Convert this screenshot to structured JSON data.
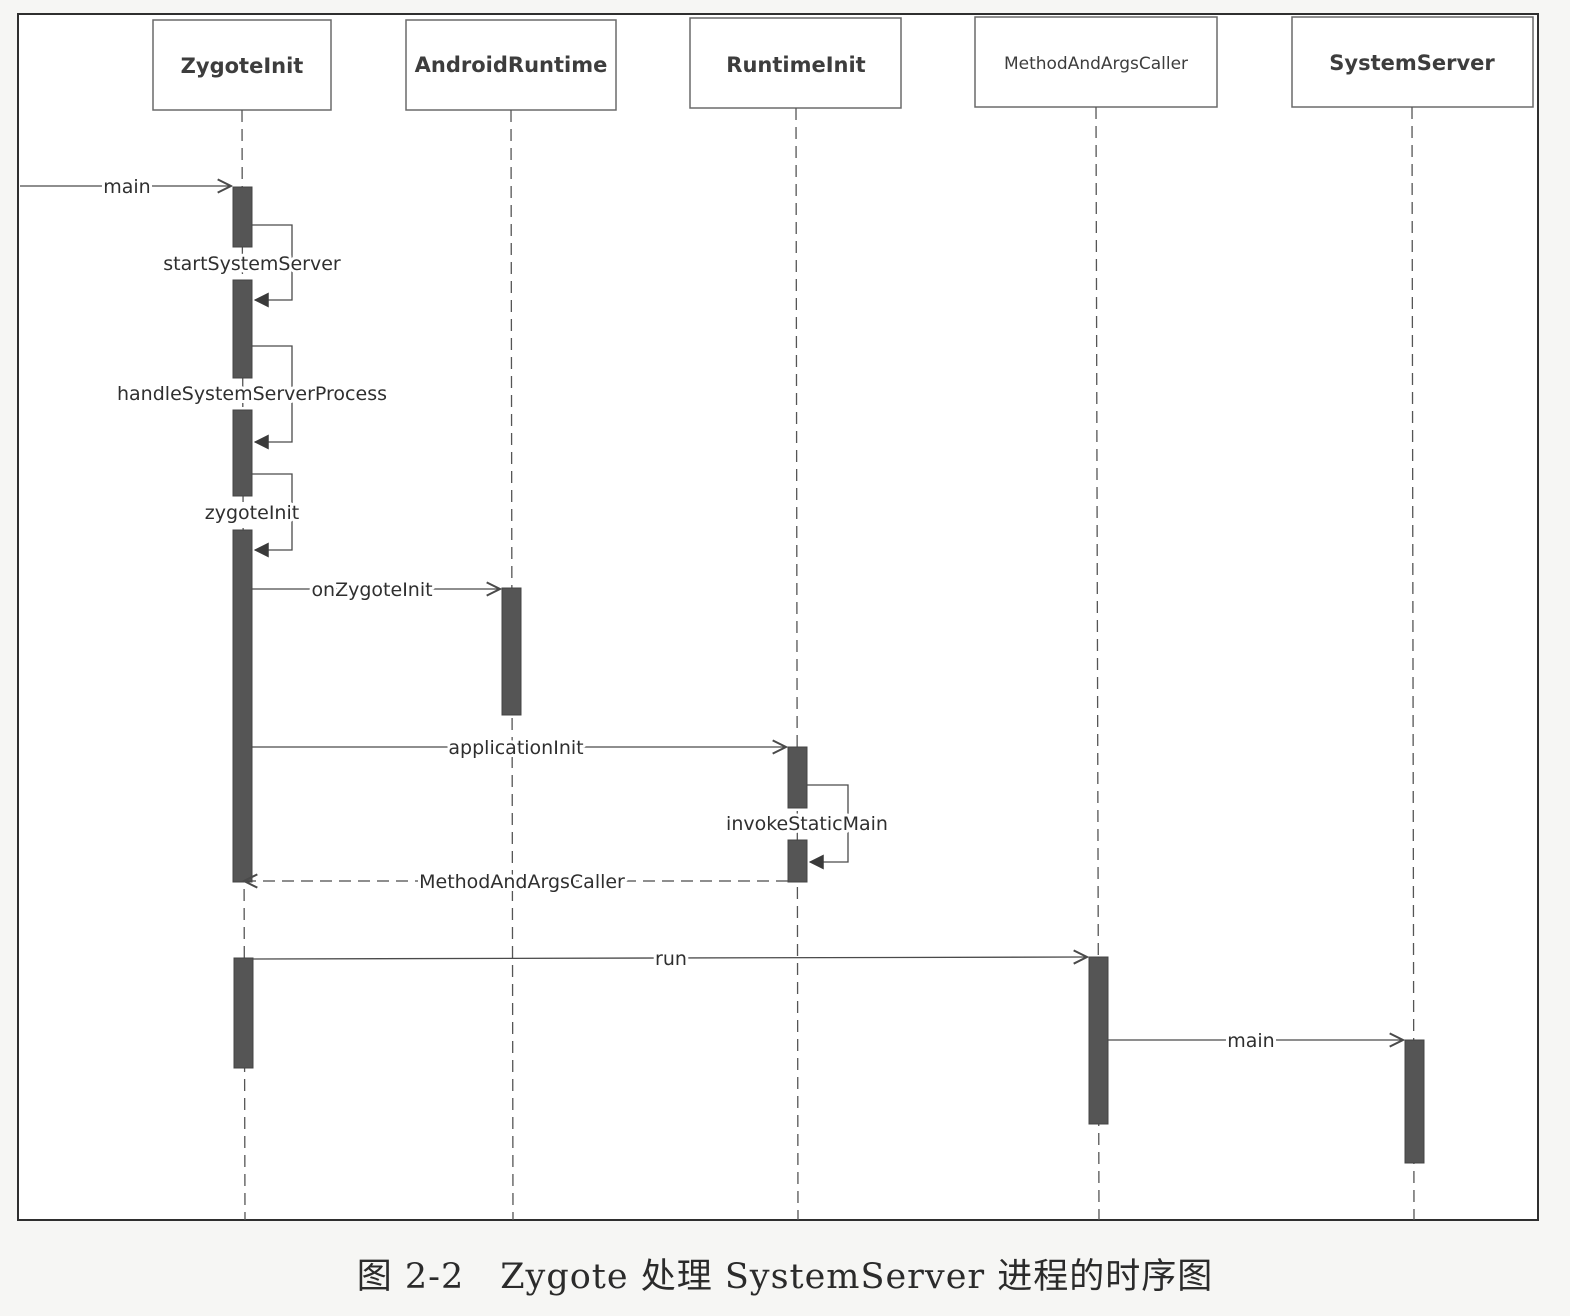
{
  "participants": [
    {
      "id": "zygote",
      "label": "ZygoteInit"
    },
    {
      "id": "android",
      "label": "AndroidRuntime"
    },
    {
      "id": "runtime",
      "label": "RuntimeInit"
    },
    {
      "id": "caller",
      "label": "MethodAndArgsCaller"
    },
    {
      "id": "server",
      "label": "SystemServer"
    }
  ],
  "messages": [
    {
      "id": "main-entry",
      "label": "main",
      "from": null,
      "to": "zygote",
      "kind": "call"
    },
    {
      "id": "start-system-server",
      "label": "startSystemServer",
      "from": "zygote",
      "to": "zygote",
      "kind": "self"
    },
    {
      "id": "handle-system-server-process",
      "label": "handleSystemServerProcess",
      "from": "zygote",
      "to": "zygote",
      "kind": "self"
    },
    {
      "id": "zygote-init",
      "label": "zygoteInit",
      "from": "zygote",
      "to": "zygote",
      "kind": "self"
    },
    {
      "id": "on-zygote-init",
      "label": "onZygoteInit",
      "from": "zygote",
      "to": "android",
      "kind": "call"
    },
    {
      "id": "application-init",
      "label": "applicationInit",
      "from": "zygote",
      "to": "runtime",
      "kind": "call"
    },
    {
      "id": "invoke-static-main",
      "label": "invokeStaticMain",
      "from": "runtime",
      "to": "runtime",
      "kind": "self"
    },
    {
      "id": "method-and-args-caller-return",
      "label": "MethodAndArgsCaller",
      "from": "runtime",
      "to": "zygote",
      "kind": "return"
    },
    {
      "id": "run",
      "label": "run",
      "from": "zygote",
      "to": "caller",
      "kind": "call"
    },
    {
      "id": "main-system-server",
      "label": "main",
      "from": "caller",
      "to": "server",
      "kind": "call"
    }
  ],
  "caption": "图 2-2　Zygote 处理 SystemServer 进程的时序图"
}
